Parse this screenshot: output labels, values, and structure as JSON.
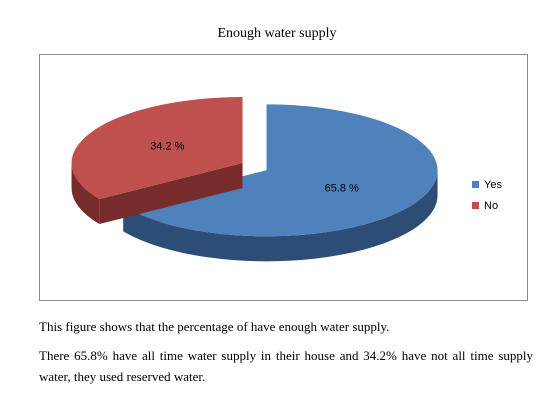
{
  "chart_data": {
    "type": "pie",
    "title": "Enough water supply",
    "categories": [
      "Yes",
      "No"
    ],
    "values": [
      65.8,
      34.2
    ],
    "value_labels": [
      "65.8 %",
      "34.2 %"
    ],
    "colors": [
      "#4f81bd",
      "#c0504d"
    ],
    "side_colors": [
      "#2c4d75",
      "#772c2a"
    ],
    "legend_position": "right",
    "style": "3d-exploded"
  },
  "text": {
    "paragraph_1": "This figure shows that the percentage of have enough water supply.",
    "paragraph_2": "There 65.8% have all time water supply in their house and 34.2% have not all time supply water, they used reserved water."
  }
}
